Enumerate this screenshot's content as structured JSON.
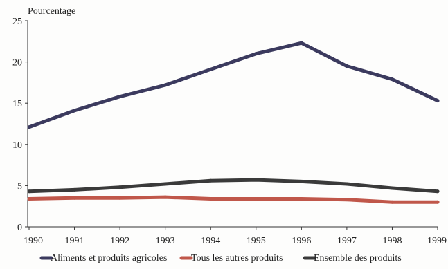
{
  "chart_data": {
    "type": "line",
    "title": "",
    "ylabel": "Pourcentage",
    "xlabel": "",
    "x": [
      "1990",
      "1991",
      "1992",
      "1993",
      "1994",
      "1995",
      "1996",
      "1997",
      "1998",
      "1999"
    ],
    "ylim": [
      0,
      25
    ],
    "yticks": [
      "0",
      "5",
      "10",
      "15",
      "20",
      "25"
    ],
    "grid": false,
    "legend_position": "bottom",
    "series": [
      {
        "name": "Aliments et produits agricoles",
        "values": [
          12.1,
          14.1,
          15.8,
          17.2,
          19.1,
          21.0,
          22.3,
          19.5,
          17.9,
          15.3
        ],
        "color": "#3b3a5e"
      },
      {
        "name": "Tous les autres produits",
        "values": [
          3.4,
          3.5,
          3.5,
          3.6,
          3.4,
          3.4,
          3.4,
          3.3,
          3.0,
          3.0
        ],
        "color": "#c0574a"
      },
      {
        "name": "Ensemble des produits",
        "values": [
          4.3,
          4.5,
          4.8,
          5.2,
          5.6,
          5.7,
          5.5,
          5.2,
          4.7,
          4.3
        ],
        "color": "#3a3a3a"
      }
    ]
  }
}
